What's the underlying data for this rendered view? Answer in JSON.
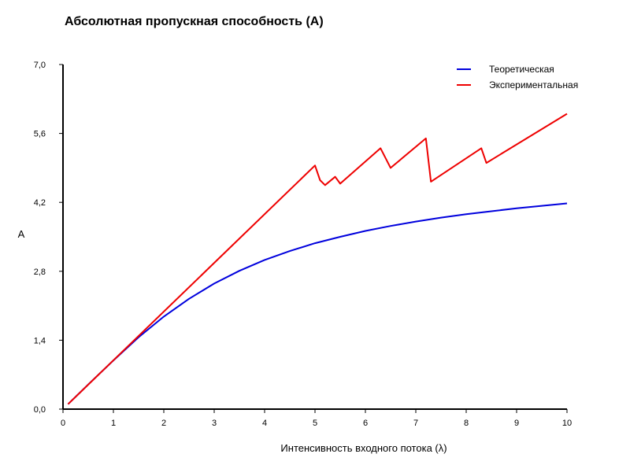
{
  "chart_data": {
    "type": "line",
    "title": "Абсолютная пропускная способность (A)",
    "xlabel": "Интенсивность входного потока (λ)",
    "ylabel": "A",
    "xlim": [
      0,
      10
    ],
    "ylim": [
      0,
      7
    ],
    "x_ticks": [
      "0",
      "1",
      "2",
      "3",
      "4",
      "5",
      "6",
      "7",
      "8",
      "9",
      "10"
    ],
    "y_ticks": [
      "0,0",
      "1,4",
      "2,8",
      "4,2",
      "5,6",
      "7,0"
    ],
    "grid": false,
    "legend": "top-right",
    "series": [
      {
        "name": "Теоретическая",
        "color": "#0000dd",
        "x": [
          0.1,
          0.5,
          1,
          1.5,
          2,
          2.5,
          3,
          3.5,
          4,
          4.5,
          5,
          5.5,
          6,
          6.5,
          7,
          7.5,
          8,
          8.5,
          9,
          9.5,
          10
        ],
        "y": [
          0.1,
          0.5,
          0.99,
          1.46,
          1.88,
          2.24,
          2.55,
          2.81,
          3.03,
          3.21,
          3.37,
          3.5,
          3.62,
          3.72,
          3.81,
          3.89,
          3.96,
          4.02,
          4.08,
          4.13,
          4.18
        ]
      },
      {
        "name": "Экспериментальная",
        "color": "#ee0000",
        "x": [
          0.1,
          5.0,
          5.1,
          5.2,
          5.4,
          5.5,
          6.3,
          6.5,
          7.2,
          7.3,
          8.3,
          8.4,
          10
        ],
        "y": [
          0.1,
          4.95,
          4.65,
          4.55,
          4.72,
          4.58,
          5.3,
          4.9,
          5.5,
          4.62,
          5.3,
          5.0,
          6.0
        ]
      }
    ]
  }
}
